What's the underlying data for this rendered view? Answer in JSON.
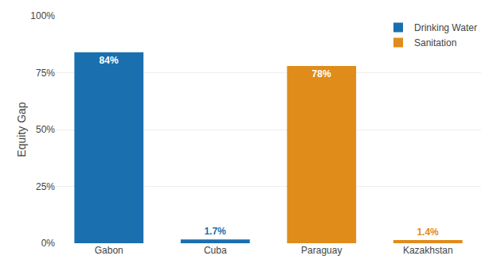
{
  "chart_data": {
    "type": "bar",
    "categories": [
      "Gabon",
      "Cuba",
      "Paraguay",
      "Kazakhstan"
    ],
    "series": [
      {
        "name": "Drinking Water",
        "color": "#1a6faf",
        "values": [
          84,
          1.7,
          null,
          null
        ],
        "value_labels": [
          "84%",
          "1.7%",
          null,
          null
        ]
      },
      {
        "name": "Sanitation",
        "color": "#e08c1a",
        "values": [
          null,
          null,
          78,
          1.4
        ],
        "value_labels": [
          null,
          null,
          "78%",
          "1.4%"
        ]
      }
    ],
    "ylabel": "Equity Gap",
    "ylim": [
      0,
      100
    ],
    "yticks": [
      {
        "value": 0,
        "label": "0%"
      },
      {
        "value": 25,
        "label": "25%"
      },
      {
        "value": 50,
        "label": "50%"
      },
      {
        "value": 75,
        "label": "75%"
      },
      {
        "value": 100,
        "label": "100%"
      }
    ],
    "grid": true,
    "data_labels": true,
    "legend": "upper right"
  }
}
